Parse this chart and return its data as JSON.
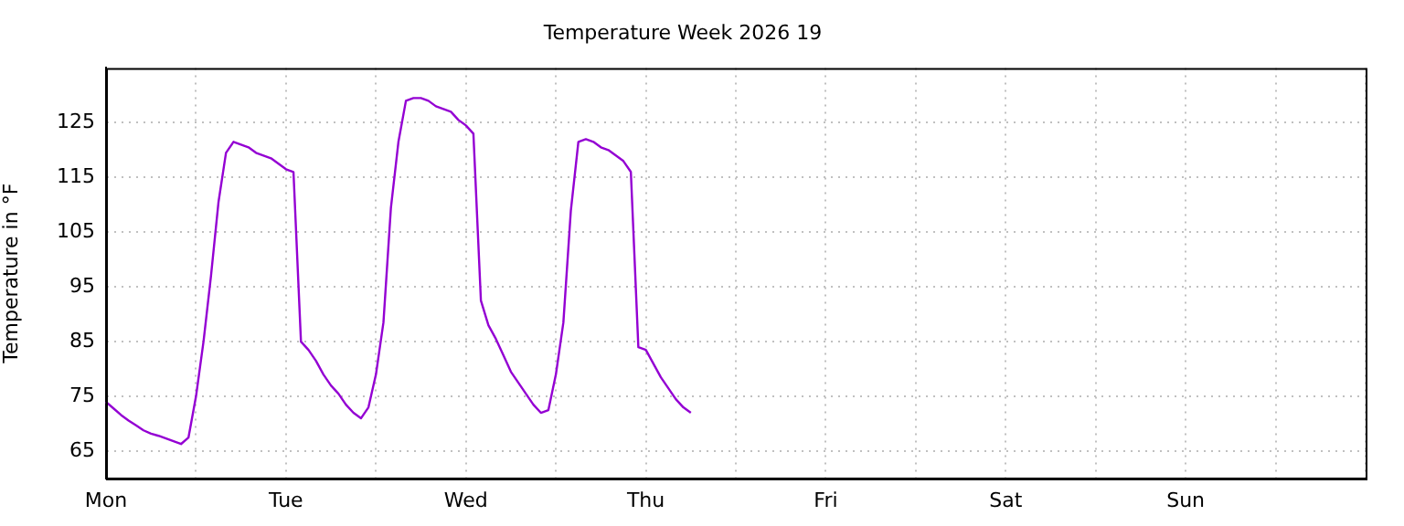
{
  "chart_data": {
    "type": "line",
    "title": "Temperature Week 2026 19",
    "ylabel": "Temperature in °F",
    "categories": [
      "Mon",
      null,
      null,
      null,
      null,
      null,
      null,
      null,
      null,
      null,
      null,
      null,
      null,
      null,
      null,
      null,
      null,
      null,
      null,
      null,
      null,
      null,
      null,
      null,
      "Tue",
      null,
      null,
      null,
      null,
      null,
      null,
      null,
      null,
      null,
      null,
      null,
      null,
      null,
      null,
      null,
      null,
      null,
      null,
      null,
      null,
      null,
      null,
      null,
      "Wed",
      null,
      null,
      null,
      null,
      null,
      null,
      null,
      null,
      null,
      null,
      null,
      null,
      null,
      null,
      null,
      null,
      null,
      null,
      null,
      null,
      null,
      null,
      null,
      "Thu",
      null,
      null,
      null,
      null,
      null,
      null,
      null,
      null,
      null,
      null,
      null,
      null,
      null,
      null,
      null,
      null,
      null,
      null,
      null,
      null,
      null,
      null,
      null,
      "Fri",
      null,
      null,
      null,
      null,
      null,
      null,
      null,
      null,
      null,
      null,
      null,
      null,
      null,
      null,
      null,
      null,
      null,
      null,
      null,
      null,
      null,
      null,
      null,
      "Sat",
      null,
      null,
      null,
      null,
      null,
      null,
      null,
      null,
      null,
      null,
      null,
      null,
      null,
      null,
      null,
      null,
      null,
      null,
      null,
      null,
      null,
      null,
      null,
      "Sun",
      null,
      null,
      null,
      null,
      null,
      null,
      null,
      null,
      null,
      null,
      null,
      null,
      null,
      null,
      null,
      null,
      null,
      null,
      null,
      null,
      null,
      null,
      null,
      null
    ],
    "ylim": [
      60,
      135
    ],
    "yticks": [
      65,
      75,
      85,
      95,
      105,
      115,
      125
    ],
    "grid": true,
    "legend": false,
    "marker": "none",
    "line_style": "solid",
    "series": [
      {
        "color": "#9400d3",
        "values": [
          74,
          72.8,
          71.6,
          70.6,
          69.7,
          68.8,
          68.2,
          67.8,
          67.3,
          66.8,
          66.3,
          67.5,
          75,
          85,
          97,
          110.5,
          119.5,
          121.5,
          121,
          120.5,
          119.5,
          119,
          118.5,
          117.5,
          116.5,
          116,
          85,
          83.5,
          81.5,
          79,
          77,
          75.5,
          73.5,
          72,
          71,
          73,
          79,
          88.5,
          109.5,
          121.5,
          129,
          129.5,
          129.5,
          129,
          128,
          127.5,
          127,
          125.5,
          124.5,
          123,
          92.5,
          88,
          85.5,
          82.5,
          79.5,
          77.5,
          75.5,
          73.5,
          72,
          72.5,
          79,
          88.5,
          109,
          121.5,
          122,
          121.5,
          120.5,
          120,
          119,
          118,
          116,
          84,
          83.5,
          81,
          78.5,
          76.5,
          74.5,
          73,
          72,
          null,
          null,
          null,
          null,
          null,
          null,
          null,
          null,
          null,
          null,
          null,
          null,
          null,
          null,
          null,
          null,
          null,
          null,
          null,
          null,
          null,
          null,
          null,
          null,
          null,
          null,
          null,
          null,
          null,
          null,
          null,
          null,
          null,
          null,
          null,
          null,
          null,
          null,
          null,
          null,
          null,
          null,
          null,
          null,
          null,
          null,
          null,
          null,
          null,
          null,
          null,
          null,
          null,
          null,
          null,
          null,
          null,
          null,
          null,
          null,
          null,
          null,
          null,
          null,
          null,
          null,
          null,
          null,
          null,
          null,
          null,
          null,
          null,
          null,
          null,
          null,
          null,
          null,
          null,
          null,
          null,
          null,
          null,
          null,
          null,
          null,
          null,
          null,
          null,
          null
        ]
      }
    ]
  }
}
